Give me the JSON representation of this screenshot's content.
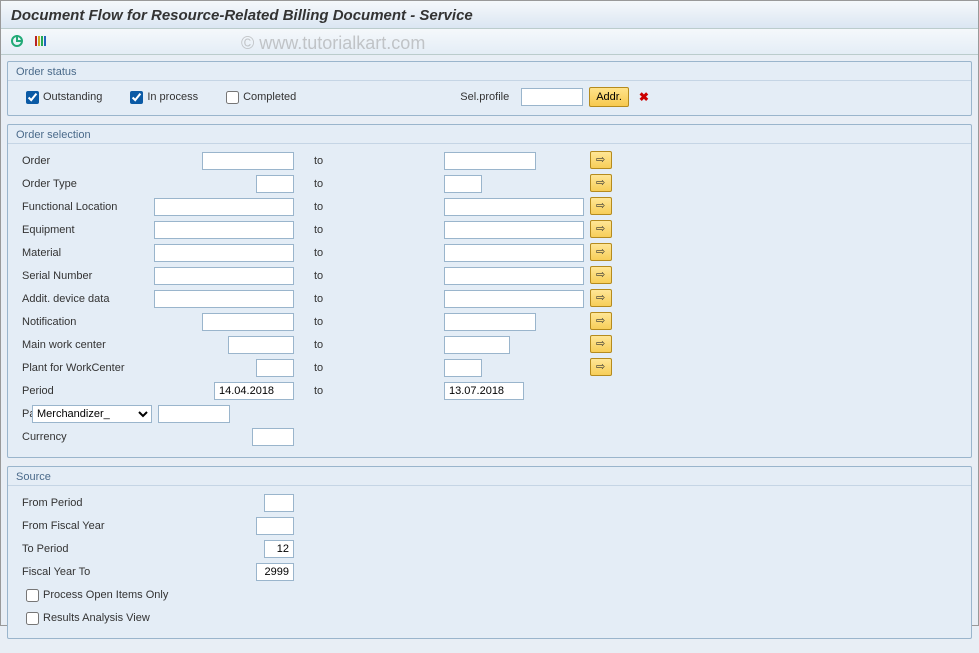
{
  "title": "Document Flow for Resource-Related Billing Document - Service",
  "watermark": "© www.tutorialkart.com",
  "order_status": {
    "title": "Order status",
    "outstanding": {
      "label": "Outstanding",
      "checked": true
    },
    "in_process": {
      "label": "In process",
      "checked": true
    },
    "completed": {
      "label": "Completed",
      "checked": false
    },
    "sel_profile_label": "Sel.profile",
    "sel_profile_value": "",
    "addr_button": "Addr."
  },
  "order_selection": {
    "title": "Order selection",
    "to_label": "to",
    "rows": [
      {
        "label": "Order",
        "from": "",
        "to": "",
        "from_w": 92,
        "to_w": 92,
        "mult": true
      },
      {
        "label": "Order Type",
        "from": "",
        "to": "",
        "from_w": 38,
        "to_w": 38,
        "mult": true
      },
      {
        "label": "Functional Location",
        "from": "",
        "to": "",
        "from_w": 140,
        "to_w": 140,
        "mult": true
      },
      {
        "label": "Equipment",
        "from": "",
        "to": "",
        "from_w": 140,
        "to_w": 140,
        "mult": true
      },
      {
        "label": "Material",
        "from": "",
        "to": "",
        "from_w": 140,
        "to_w": 140,
        "mult": true
      },
      {
        "label": "Serial Number",
        "from": "",
        "to": "",
        "from_w": 140,
        "to_w": 140,
        "mult": true
      },
      {
        "label": "Addit. device data",
        "from": "",
        "to": "",
        "from_w": 140,
        "to_w": 140,
        "mult": true
      },
      {
        "label": "Notification",
        "from": "",
        "to": "",
        "from_w": 92,
        "to_w": 92,
        "mult": true
      },
      {
        "label": "Main work center",
        "from": "",
        "to": "",
        "from_w": 66,
        "to_w": 66,
        "mult": true
      },
      {
        "label": "Plant for WorkCenter",
        "from": "",
        "to": "",
        "from_w": 38,
        "to_w": 38,
        "mult": true
      },
      {
        "label": "Period",
        "from": "14.04.2018",
        "to": "13.07.2018",
        "from_w": 80,
        "to_w": 80,
        "mult": false
      }
    ],
    "partners": {
      "label": "Partners",
      "selected": "Merchandizer_",
      "value": ""
    },
    "currency": {
      "label": "Currency",
      "value": ""
    }
  },
  "source": {
    "title": "Source",
    "from_period": {
      "label": "From Period",
      "value": ""
    },
    "from_fiscal_year": {
      "label": "From Fiscal Year",
      "value": ""
    },
    "to_period": {
      "label": "To Period",
      "value": "12"
    },
    "fiscal_year_to": {
      "label": "Fiscal Year To",
      "value": "2999"
    },
    "process_open": {
      "label": "Process Open Items Only",
      "checked": false
    },
    "results_view": {
      "label": "Results Analysis View",
      "checked": false
    }
  }
}
